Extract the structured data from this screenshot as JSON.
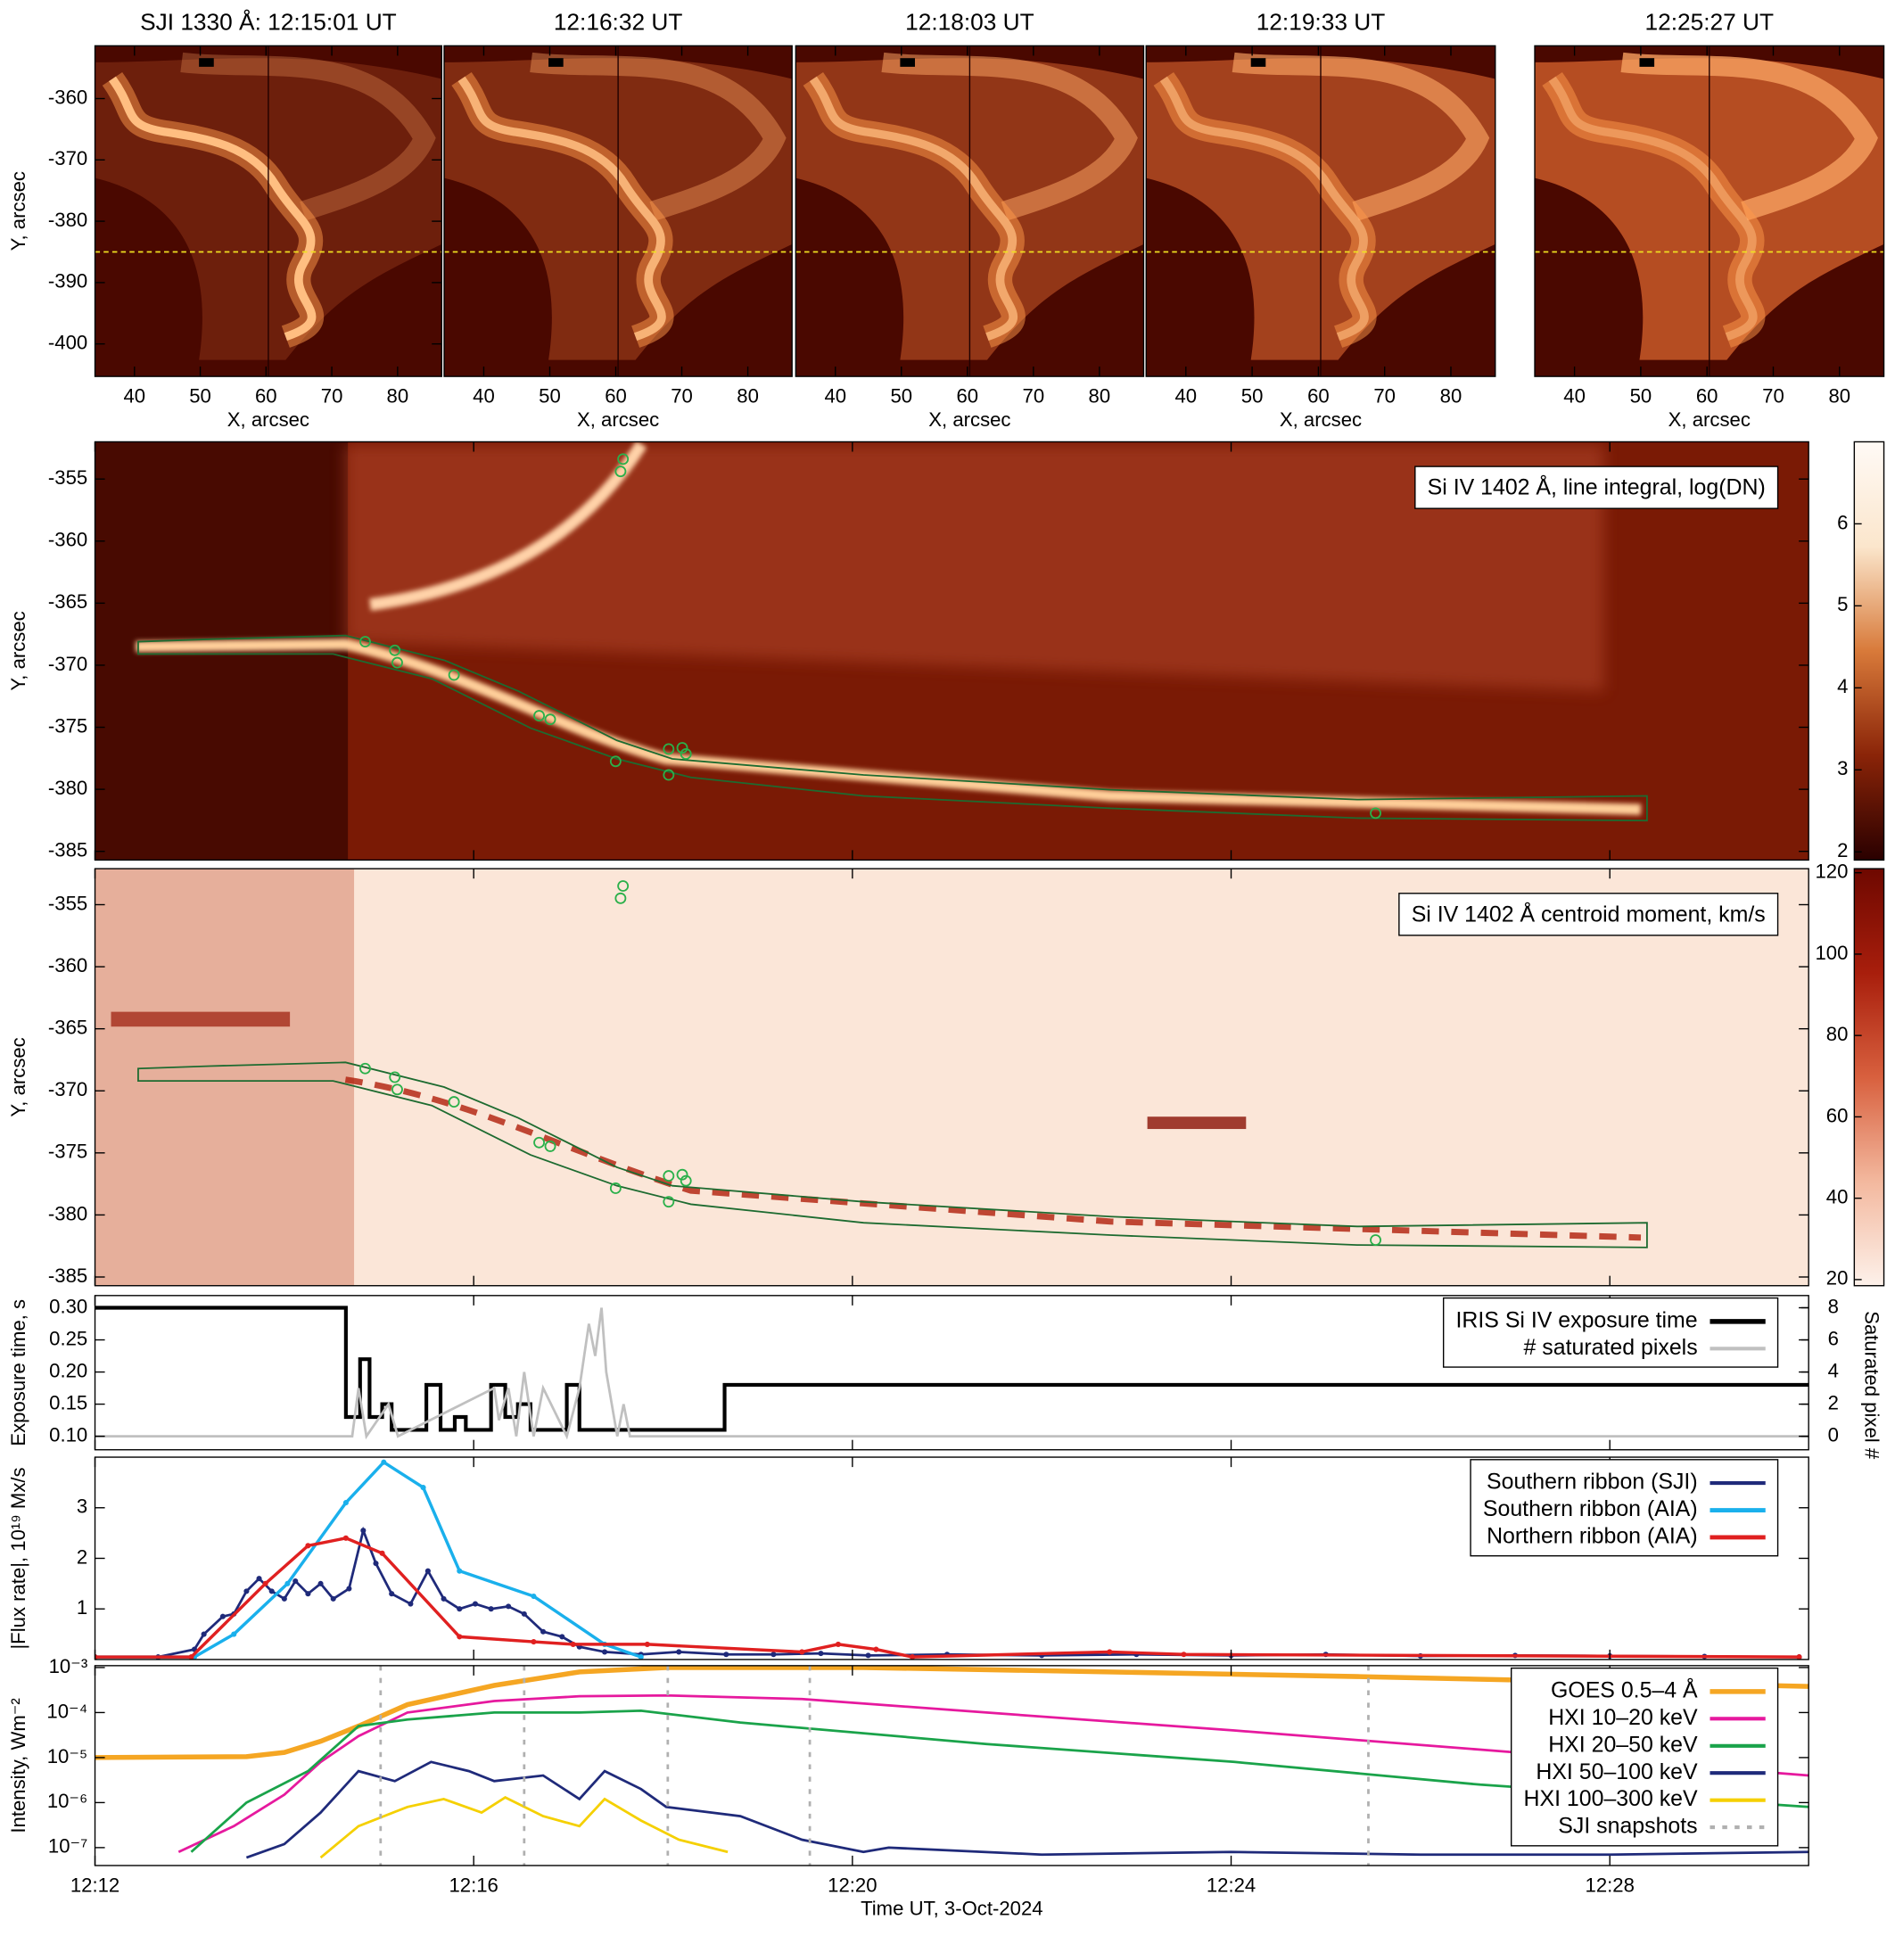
{
  "chart_data": [
    {
      "type": "image",
      "title": "SJI 1330 Å: 12:15:01 UT",
      "xlabel": "X, arcsec",
      "ylabel": "Y, arcsec",
      "xlim": [
        34,
        86.7
      ],
      "ylim": [
        -405.3,
        -351.4
      ],
      "xticks": [
        40,
        50,
        60,
        70,
        80
      ],
      "yticks": [
        -360,
        -370,
        -380,
        -390,
        -400
      ],
      "hline": -385
    },
    {
      "type": "image",
      "title": "12:16:32 UT",
      "xlabel": "X, arcsec",
      "xlim": [
        34,
        86.7
      ],
      "ylim": [
        -405.3,
        -351.4
      ],
      "xticks": [
        40,
        50,
        60,
        70,
        80
      ],
      "hline": -385
    },
    {
      "type": "image",
      "title": "12:18:03 UT",
      "xlabel": "X, arcsec",
      "xlim": [
        34,
        86.7
      ],
      "ylim": [
        -405.3,
        -351.4
      ],
      "xticks": [
        40,
        50,
        60,
        70,
        80
      ],
      "hline": -385
    },
    {
      "type": "image",
      "title": "12:19:33 UT",
      "xlabel": "X, arcsec",
      "xlim": [
        34,
        86.7
      ],
      "ylim": [
        -405.3,
        -351.4
      ],
      "xticks": [
        40,
        50,
        60,
        70,
        80
      ],
      "hline": -385
    },
    {
      "type": "image",
      "title": "12:25:27 UT",
      "xlabel": "X, arcsec",
      "xlim": [
        34,
        86.7
      ],
      "ylim": [
        -405.3,
        -351.4
      ],
      "xticks": [
        40,
        50,
        60,
        70,
        80
      ],
      "hline": -385
    },
    {
      "type": "heatmap",
      "annotation": "Si IV 1402 Å, line integral, log(DN)",
      "ylabel": "Y, arcsec",
      "xlim": [
        "12:12:00",
        "12:30:06"
      ],
      "xticks": [
        "12:12",
        "12:16",
        "12:20",
        "12:24",
        "12:28"
      ],
      "ylim": [
        -385.7,
        -352
      ],
      "yticks": [
        -355,
        -360,
        -365,
        -370,
        -375,
        -380,
        -385
      ],
      "colorbar": {
        "lim": [
          1.9,
          7.0
        ],
        "ticks": [
          2,
          3,
          4,
          5,
          6
        ]
      }
    },
    {
      "type": "heatmap",
      "annotation": "Si IV 1402 Å centroid moment, km/s",
      "ylabel": "Y, arcsec",
      "xlim": [
        "12:12:00",
        "12:30:06"
      ],
      "xticks": [
        "12:12",
        "12:16",
        "12:20",
        "12:24",
        "12:28"
      ],
      "ylim": [
        -385.7,
        -352.1
      ],
      "yticks": [
        -355,
        -360,
        -365,
        -370,
        -375,
        -380,
        -385
      ],
      "colorbar": {
        "lim": [
          18.5,
          121
        ],
        "ticks": [
          20,
          40,
          60,
          80,
          100,
          120
        ]
      }
    },
    {
      "type": "line",
      "ylabel": "Exposure time, s",
      "y2label": "Saturated pixel #",
      "legend": "upper right",
      "xlim": [
        "12:12:00",
        "12:30:06"
      ],
      "xticks": [
        "12:12",
        "12:16",
        "12:20",
        "12:24",
        "12:28"
      ],
      "ylim": [
        0.079,
        0.319
      ],
      "yticks": [
        {
          "value": 0.1,
          "label": "0.10"
        },
        0.15,
        {
          "value": 0.2,
          "label": "0.20"
        },
        0.25,
        {
          "value": 0.3,
          "label": "0.30"
        }
      ],
      "y2lim": [
        -0.84,
        8.76
      ],
      "y2ticks": [
        0,
        2,
        4,
        6,
        8
      ],
      "series": [
        {
          "name": "IRIS Si IV exposure time",
          "color": "#000000",
          "linewidth": 3,
          "drawstyle": "steps-post",
          "x": [
            "12:12:00",
            "12:14:39",
            "12:14:48",
            "12:14:54",
            "12:15:02",
            "12:15:08",
            "12:15:30",
            "12:15:39",
            "12:15:48",
            "12:15:55",
            "12:16:11",
            "12:16:20",
            "12:16:28",
            "12:16:36",
            "12:16:59",
            "12:17:07",
            "12:18:39",
            "12:30:06"
          ],
          "values": [
            0.3,
            0.13,
            0.22,
            0.13,
            0.15,
            0.11,
            0.18,
            0.11,
            0.13,
            0.11,
            0.18,
            0.13,
            0.15,
            0.11,
            0.18,
            0.11,
            0.18,
            0.18
          ]
        },
        {
          "name": "# saturated pixels",
          "color": "#c0c0c0",
          "linewidth": 2,
          "axis": "y2",
          "x": [
            "12:12:00",
            "12:14:43",
            "12:14:47",
            "12:14:52",
            "12:15:06",
            "12:15:12",
            "12:16:13",
            "12:16:16",
            "12:16:22",
            "12:16:27",
            "12:16:32",
            "12:16:38",
            "12:16:44",
            "12:16:59",
            "12:17:07",
            "12:17:13",
            "12:17:17",
            "12:17:21",
            "12:17:24",
            "12:17:31",
            "12:17:35",
            "12:17:39",
            "12:30:06"
          ],
          "values": [
            0,
            0,
            3,
            0,
            2,
            0,
            3,
            1,
            3,
            0,
            4,
            0,
            3,
            0,
            3,
            7,
            5,
            8,
            4,
            0,
            2,
            0,
            0
          ]
        }
      ]
    },
    {
      "type": "line",
      "ylabel": "|Flux rate|, 10¹⁹ Mx/s",
      "legend": "upper right",
      "xlim": [
        "12:12:00",
        "12:30:06"
      ],
      "xticks": [
        "12:12",
        "12:16",
        "12:20",
        "12:24",
        "12:28"
      ],
      "ylim": [
        0,
        4
      ],
      "yticks": [
        1,
        2,
        3
      ],
      "series": [
        {
          "name": "Southern ribbon (SJI)",
          "color": "#1f2a7a",
          "linewidth": 2,
          "marker": "o",
          "x": [
            "12:12:00",
            "12:12:40",
            "12:13:03",
            "12:13:09",
            "12:13:21",
            "12:13:28",
            "12:13:36",
            "12:13:44",
            "12:13:52",
            "12:14:00",
            "12:14:07",
            "12:14:15",
            "12:14:23",
            "12:14:31",
            "12:14:41",
            "12:14:50",
            "12:14:58",
            "12:15:08",
            "12:15:20",
            "12:15:31",
            "12:15:41",
            "12:15:51",
            "12:16:01",
            "12:16:11",
            "12:16:22",
            "12:16:32",
            "12:16:44",
            "12:16:56",
            "12:17:07",
            "12:17:23",
            "12:17:46",
            "12:18:10",
            "12:18:40",
            "12:19:10",
            "12:19:40",
            "12:20:10",
            "12:21:00",
            "12:22:00",
            "12:23:00",
            "12:24:00",
            "12:25:00",
            "12:26:00",
            "12:27:00",
            "12:28:00",
            "12:29:00",
            "12:30:00"
          ],
          "values": [
            0.05,
            0.05,
            0.2,
            0.5,
            0.85,
            0.9,
            1.35,
            1.6,
            1.35,
            1.2,
            1.55,
            1.3,
            1.5,
            1.2,
            1.4,
            2.55,
            1.9,
            1.3,
            1.1,
            1.75,
            1.2,
            1.0,
            1.1,
            1.0,
            1.05,
            0.9,
            0.55,
            0.45,
            0.25,
            0.15,
            0.1,
            0.15,
            0.1,
            0.1,
            0.12,
            0.08,
            0.1,
            0.08,
            0.1,
            0.08,
            0.1,
            0.07,
            0.08,
            0.07,
            0.06,
            0.05
          ]
        },
        {
          "name": "Southern ribbon (AIA)",
          "color": "#1ab0ec",
          "linewidth": 2.5,
          "marker": "o",
          "x": [
            "12:12:00",
            "12:13:03",
            "12:13:28",
            "12:14:02",
            "12:14:39",
            "12:15:03",
            "12:15:28",
            "12:15:51",
            "12:16:38",
            "12:17:23",
            "12:17:46"
          ],
          "values": [
            0.05,
            0.05,
            0.5,
            1.5,
            3.1,
            3.9,
            3.4,
            1.75,
            1.25,
            0.3,
            0.05
          ]
        },
        {
          "name": "Northern ribbon (AIA)",
          "color": "#e02020",
          "linewidth": 2.5,
          "marker": "o",
          "x": [
            "12:12:00",
            "12:13:01",
            "12:13:48",
            "12:14:15",
            "12:14:39",
            "12:15:02",
            "12:15:51",
            "12:16:38",
            "12:17:03",
            "12:17:50",
            "12:19:28",
            "12:19:51",
            "12:20:15",
            "12:20:38",
            "12:22:43",
            "12:23:30",
            "12:30:00"
          ],
          "values": [
            0.05,
            0.05,
            1.5,
            2.25,
            2.4,
            2.1,
            0.45,
            0.35,
            0.3,
            0.3,
            0.15,
            0.3,
            0.2,
            0.05,
            0.15,
            0.1,
            0.05
          ]
        }
      ]
    },
    {
      "type": "line",
      "log": true,
      "ylabel": "Intensity, Wm⁻²",
      "xlabel": "Time UT, 3-Oct-2024",
      "legend": "upper right",
      "xlim": [
        "12:12:00",
        "12:30:06"
      ],
      "xticks": [
        "12:12",
        "12:16",
        "12:20",
        "12:24",
        "12:28"
      ],
      "ylim": [
        4e-08,
        0.0011
      ],
      "yticks": [
        {
          "value": 0.001,
          "label": "10⁻³"
        },
        {
          "value": 0.0001,
          "label": "10⁻⁴"
        },
        {
          "value": 1e-05,
          "label": "10⁻⁵"
        },
        {
          "value": 1e-06,
          "label": "10⁻⁶"
        },
        {
          "value": 1e-07,
          "label": "10⁻⁷"
        }
      ],
      "series": [
        {
          "name": "GOES 0.5–4 Å",
          "color": "#f5a623",
          "linewidth": 4,
          "x": [
            "12:12:00",
            "12:13:36",
            "12:14:00",
            "12:14:23",
            "12:14:47",
            "12:15:18",
            "12:16:13",
            "12:17:07",
            "12:18:02",
            "12:20:07",
            "12:22:43",
            "12:25:20",
            "12:27:56",
            "12:30:06"
          ],
          "values": [
            1e-05,
            1.05e-05,
            1.3e-05,
            2.3e-05,
            5e-05,
            0.00015,
            0.0004,
            0.0008,
            0.001,
            0.001,
            0.0008,
            0.00063,
            0.00048,
            0.00038
          ]
        },
        {
          "name": "HXI 10–20 keV",
          "color": "#e6199e",
          "linewidth": 2,
          "x": [
            "12:12:53",
            "12:13:28",
            "12:14:00",
            "12:14:23",
            "12:14:47",
            "12:15:18",
            "12:16:13",
            "12:17:07",
            "12:18:02",
            "12:19:28",
            "12:21:25",
            "12:24:02",
            "12:26:38",
            "12:30:06"
          ],
          "values": [
            8e-08,
            3e-07,
            1.5e-06,
            8e-06,
            3e-05,
            0.0001,
            0.00018,
            0.00023,
            0.00024,
            0.0002,
            0.0001,
            4e-05,
            1.5e-05,
            4e-06
          ]
        },
        {
          "name": "HXI 20–50 keV",
          "color": "#1aa34a",
          "linewidth": 2,
          "x": [
            "12:13:01",
            "12:13:36",
            "12:14:15",
            "12:14:47",
            "12:15:18",
            "12:16:13",
            "12:17:07",
            "12:17:46",
            "12:18:49",
            "12:21:25",
            "12:24:02",
            "12:26:38",
            "12:30:06"
          ],
          "values": [
            8e-08,
            1e-06,
            5e-06,
            5e-05,
            7e-05,
            0.0001,
            0.0001,
            0.00011,
            6e-05,
            2e-05,
            8e-06,
            2.5e-06,
            8e-07
          ]
        },
        {
          "name": "HXI 50–100 keV",
          "color": "#1f2a7a",
          "linewidth": 2,
          "x": [
            "12:13:36",
            "12:14:00",
            "12:14:23",
            "12:14:47",
            "12:15:10",
            "12:15:33",
            "12:15:57",
            "12:16:13",
            "12:16:44",
            "12:17:07",
            "12:17:23",
            "12:17:46",
            "12:18:02",
            "12:18:49",
            "12:19:28",
            "12:20:07",
            "12:20:23",
            "12:22:00",
            "12:24:00",
            "12:26:00",
            "12:28:00",
            "12:30:06"
          ],
          "values": [
            6e-08,
            1.2e-07,
            6e-07,
            5e-06,
            3e-06,
            8e-06,
            5e-06,
            3e-06,
            4e-06,
            1.2e-06,
            5e-06,
            2e-06,
            8e-07,
            5e-07,
            1.5e-07,
            8e-08,
            1e-07,
            7e-08,
            8e-08,
            7e-08,
            7e-08,
            8e-08
          ]
        },
        {
          "name": "HXI 100–300 keV",
          "color": "#f5d000",
          "linewidth": 2,
          "x": [
            "12:14:23",
            "12:14:47",
            "12:15:18",
            "12:15:41",
            "12:16:05",
            "12:16:20",
            "12:16:44",
            "12:17:07",
            "12:17:23",
            "12:17:46",
            "12:18:10",
            "12:18:41"
          ],
          "values": [
            6e-08,
            3e-07,
            8e-07,
            1.2e-06,
            6e-07,
            1.3e-06,
            5e-07,
            3e-07,
            1.2e-06,
            4e-07,
            1.5e-07,
            8e-08
          ]
        },
        {
          "name": "SJI snapshots",
          "color": "#b0b0b0",
          "linewidth": 2,
          "style": "dashed",
          "x": [
            "12:15:01",
            "12:16:32",
            "12:18:03",
            "12:19:33",
            "12:25:27"
          ]
        }
      ]
    }
  ]
}
